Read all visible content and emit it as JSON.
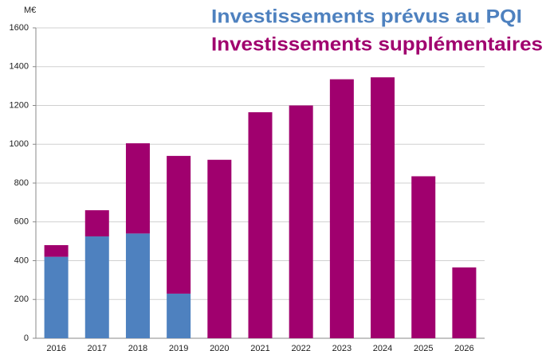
{
  "chart_data": {
    "type": "stacked-bar",
    "unit_label": "M€",
    "categories": [
      "2016",
      "2017",
      "2018",
      "2019",
      "2020",
      "2021",
      "2022",
      "2023",
      "2024",
      "2025",
      "2026"
    ],
    "series": [
      {
        "name": "Investissements prévus au PQI",
        "color": "#4e81bf",
        "values": [
          420,
          525,
          540,
          230,
          0,
          0,
          0,
          0,
          0,
          0,
          0
        ]
      },
      {
        "name": "Investissements supplémentaires",
        "color": "#a0006e",
        "values": [
          60,
          135,
          465,
          710,
          920,
          1165,
          1200,
          1335,
          1345,
          835,
          365
        ]
      }
    ],
    "ylim": [
      0,
      1600
    ],
    "yticks": [
      0,
      200,
      400,
      600,
      800,
      1000,
      1200,
      1400,
      1600
    ],
    "grid": true
  }
}
